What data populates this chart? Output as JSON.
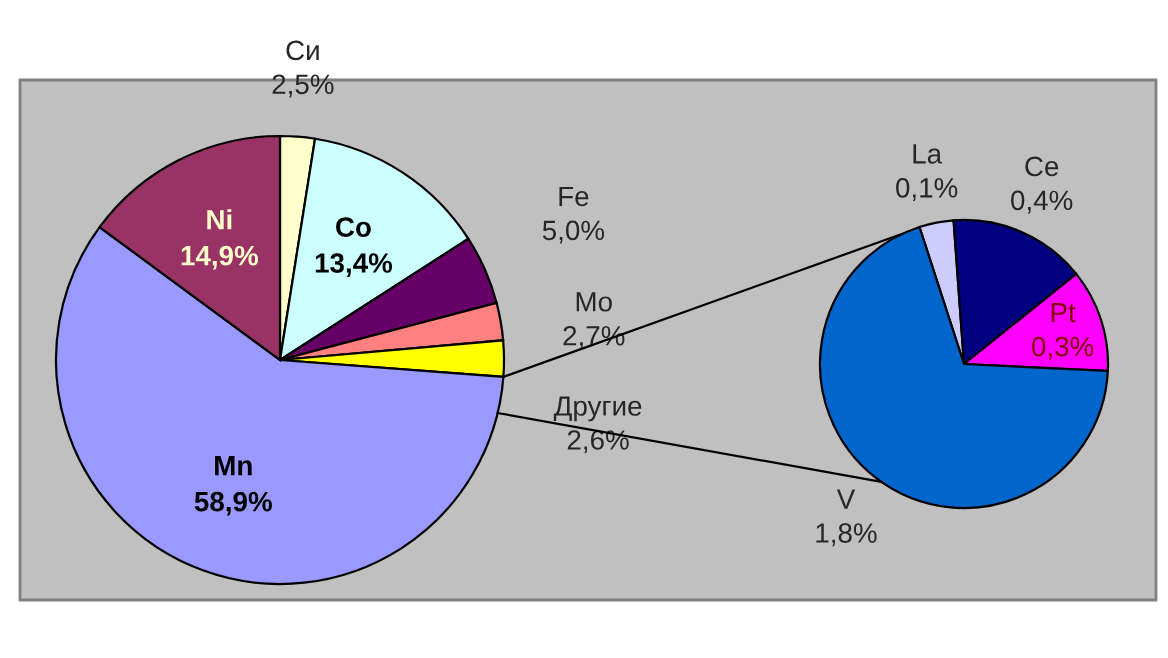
{
  "chart_data": [
    {
      "type": "pie",
      "categories": [
        "Си",
        "Co",
        "Fe",
        "Mo",
        "Другие",
        "Mn",
        "Ni"
      ],
      "values": [
        2.5,
        13.4,
        5.0,
        2.7,
        2.6,
        58.9,
        14.9
      ],
      "value_labels": [
        "2,5%",
        "13,4%",
        "5,0%",
        "2,7%",
        "2,6%",
        "58,9%",
        "14,9%"
      ],
      "colors": [
        "#ffffcc",
        "#ccffff",
        "#660066",
        "#ff8080",
        "#ffff00",
        "#9999ff",
        "#993366"
      ]
    },
    {
      "type": "pie",
      "categories": [
        "La",
        "Ce",
        "Pt",
        "V"
      ],
      "values": [
        0.1,
        0.4,
        0.3,
        1.8
      ],
      "value_labels": [
        "0,1%",
        "0,4%",
        "0,3%",
        "1,8%"
      ],
      "colors": [
        "#ccccff",
        "#000080",
        "#ff00ff",
        "#0066cc"
      ]
    }
  ]
}
